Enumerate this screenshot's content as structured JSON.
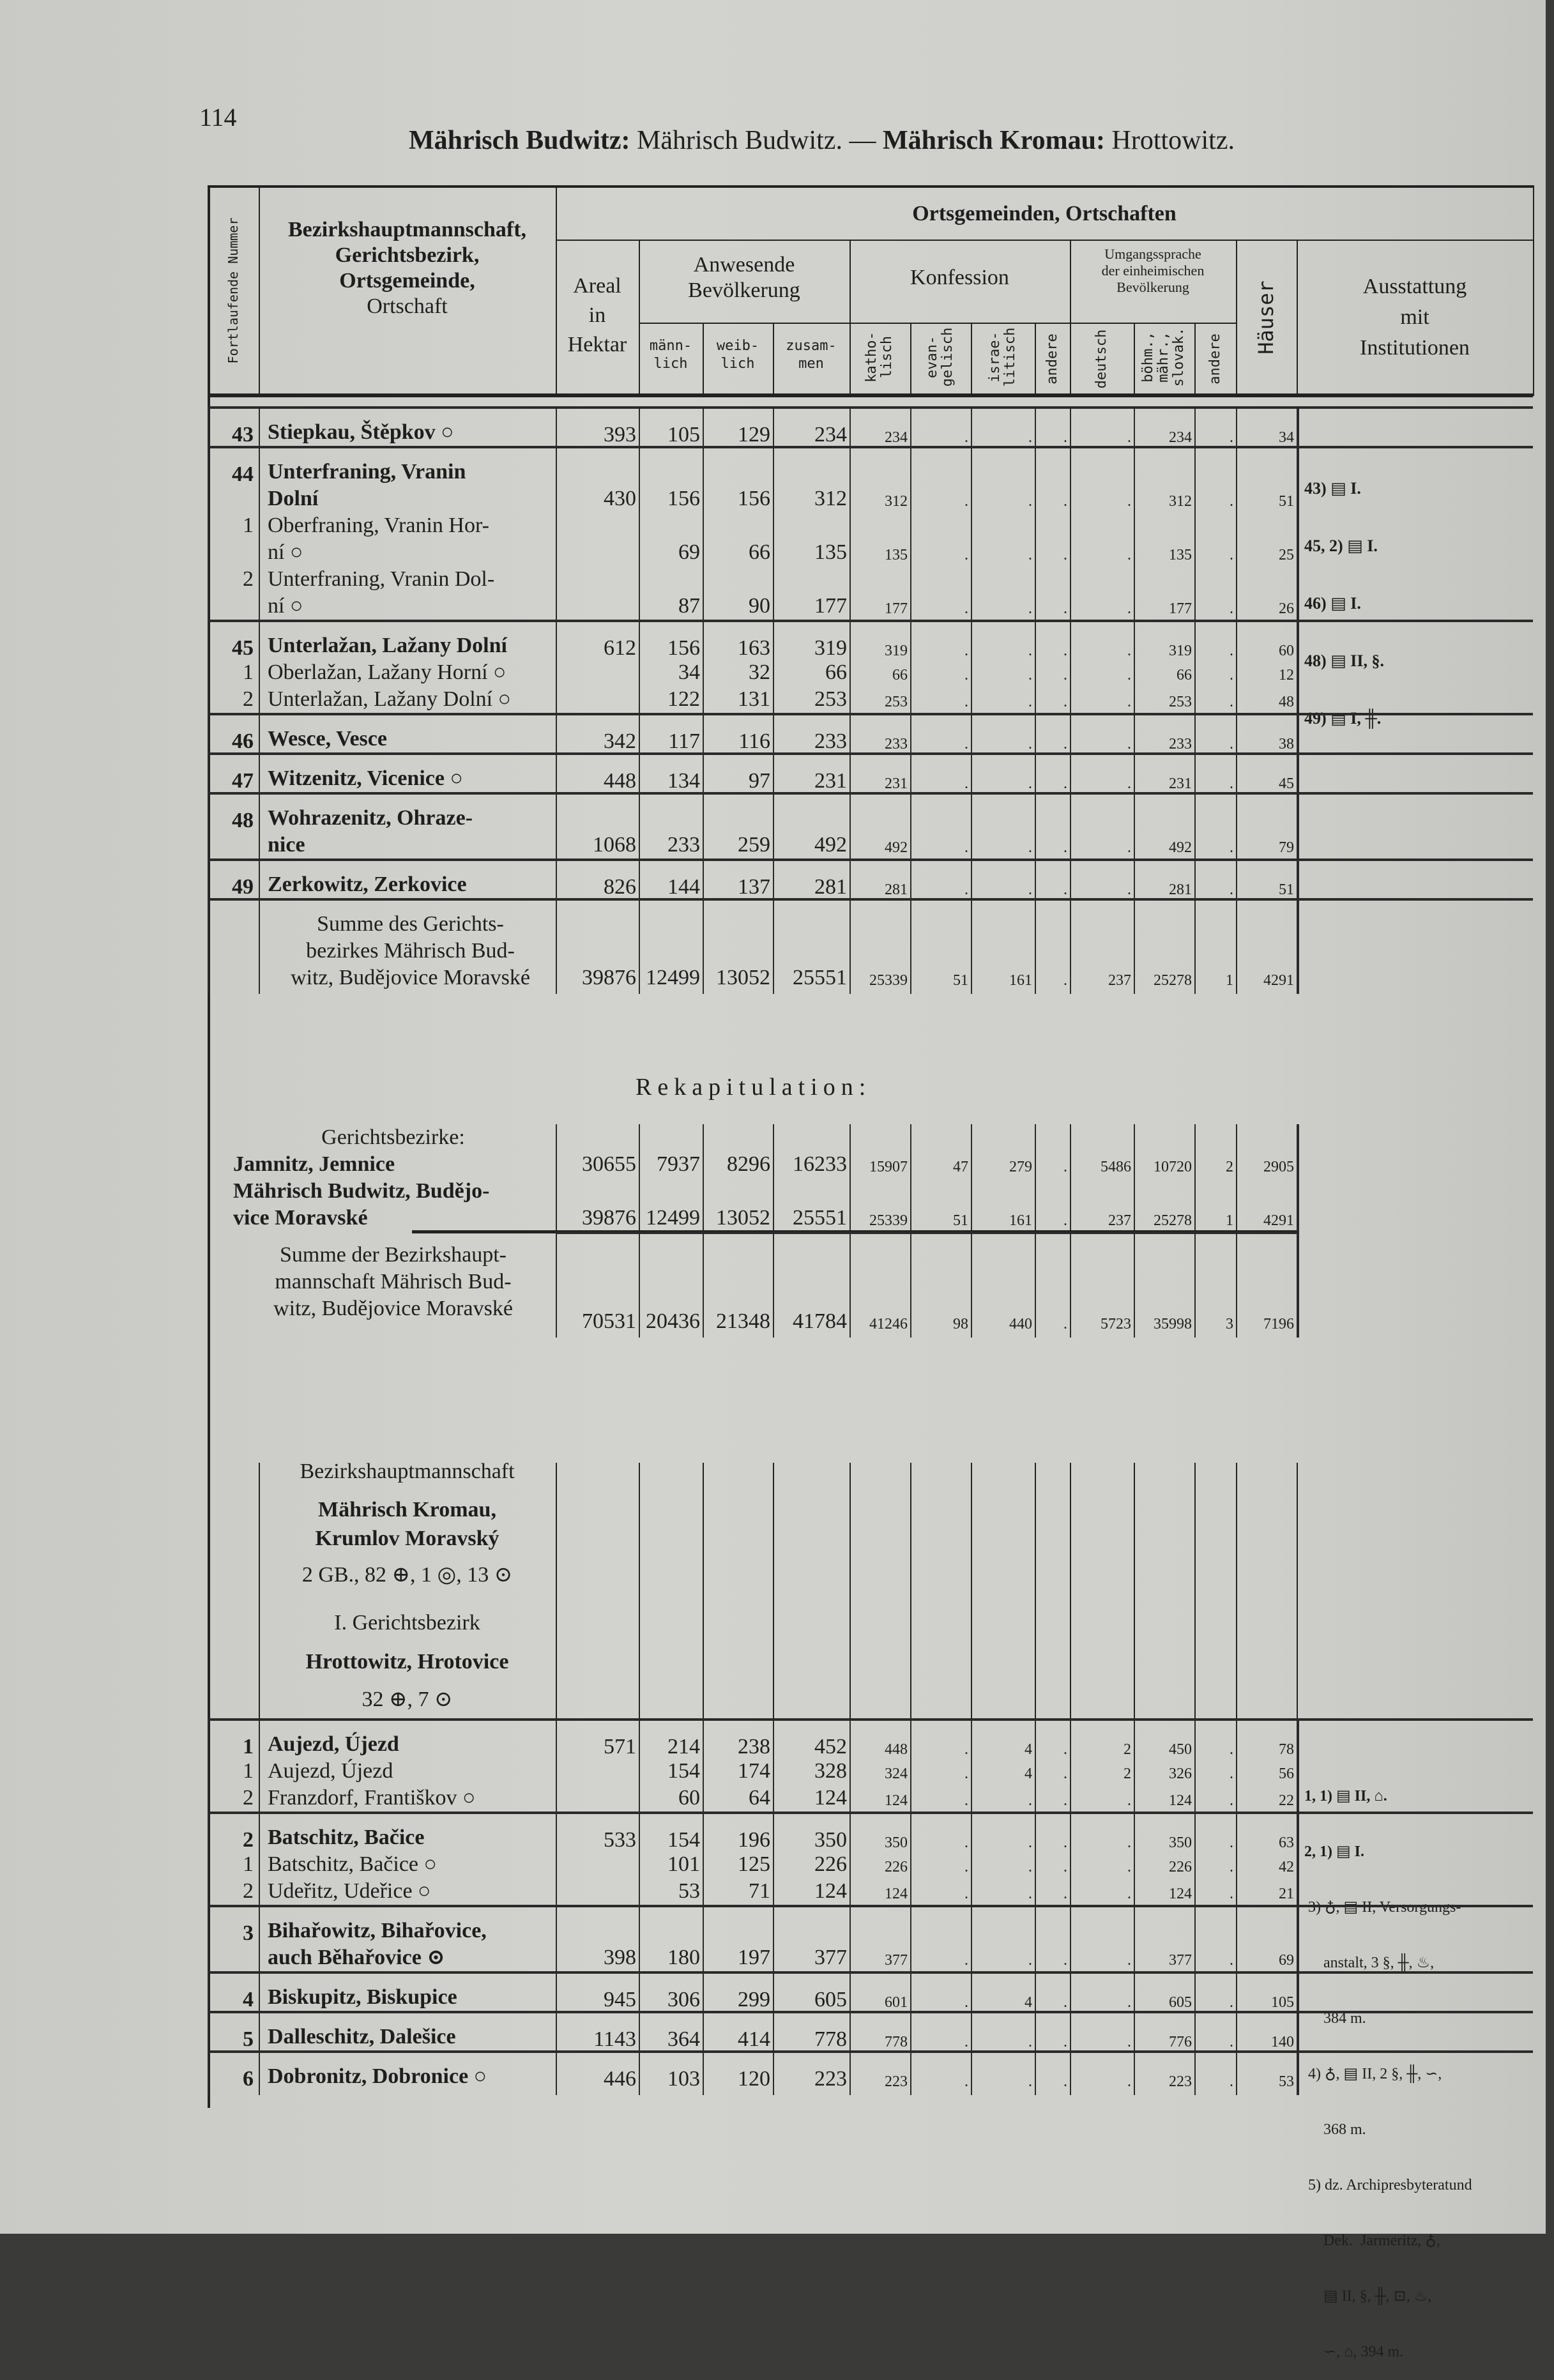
{
  "page_number": "114",
  "page_title": {
    "p1": "Mährisch Budwitz:",
    "p2": " Mährisch Budwitz. — ",
    "p3": "Mährisch Kromau:",
    "p4": " Hrottowitz."
  },
  "header": {
    "nr_label": "Fortlaufende Nummer",
    "name_lines": [
      "Bezirkshauptmannschaft,",
      "Gerichtsbezirk,",
      "Ortsgemeinde,",
      "Ortschaft"
    ],
    "group_title": "Ortsgemeinden, Ortschaften",
    "areal": [
      "Areal",
      "in",
      "Hektar"
    ],
    "bevoelkerung": [
      "Anwesende",
      "Bevölkerung"
    ],
    "bev_cols": [
      "männ-\nlich",
      "weib-\nlich",
      "zusam-\nmen"
    ],
    "konfession": "Konfession",
    "konf_cols": [
      "katho-\nlisch",
      "evan-\ngelisch",
      "israe-\nlitisch",
      "andere"
    ],
    "sprache": [
      "Umgangssprache",
      "der einheimischen",
      "Bevölkerung"
    ],
    "sprache_cols": [
      "deutsch",
      "böhm.,\nmähr.,\nslovak.",
      "andere"
    ],
    "haeuser": "Häuser",
    "ausstattung": [
      "Ausstattung",
      "mit",
      "Institutionen"
    ]
  },
  "sections": [
    {
      "rows": [
        {
          "nr": [
            "43"
          ],
          "name": [
            "Stiepkau, Štěpkov ○"
          ],
          "bold": true,
          "sep": true,
          "v": [
            "393",
            "105",
            "129",
            "234",
            "234",
            ".",
            ".",
            ".",
            ".",
            "234",
            ".",
            "34"
          ]
        },
        {
          "nr": [
            "44"
          ],
          "name": [
            "Unterfraning, Vranin",
            "Dolní"
          ],
          "bold": true,
          "sep": true,
          "v": [
            "430",
            "156",
            "156",
            "312",
            "312",
            ".",
            ".",
            ".",
            ".",
            "312",
            ".",
            "51"
          ]
        },
        {
          "nr": [
            "1"
          ],
          "name": [
            "Oberfraning, Vranin Hor-",
            "ní ○"
          ],
          "v": [
            "",
            "69",
            "66",
            "135",
            "135",
            ".",
            ".",
            ".",
            ".",
            "135",
            ".",
            "25"
          ]
        },
        {
          "nr": [
            "2"
          ],
          "name": [
            "Unterfraning, Vranin Dol-",
            "ní ○"
          ],
          "v": [
            "",
            "87",
            "90",
            "177",
            "177",
            ".",
            ".",
            ".",
            ".",
            "177",
            ".",
            "26"
          ]
        },
        {
          "nr": [
            "45"
          ],
          "name": [
            "Unterlažan, Lažany Dolní"
          ],
          "bold": true,
          "sep": true,
          "v": [
            "612",
            "156",
            "163",
            "319",
            "319",
            ".",
            ".",
            ".",
            ".",
            "319",
            ".",
            "60"
          ]
        },
        {
          "nr": [
            "1"
          ],
          "name": [
            "Oberlažan, Lažany Horní ○"
          ],
          "v": [
            "",
            "34",
            "32",
            "66",
            "66",
            ".",
            ".",
            ".",
            ".",
            "66",
            ".",
            "12"
          ]
        },
        {
          "nr": [
            "2"
          ],
          "name": [
            "Unterlažan, Lažany Dolní ○"
          ],
          "v": [
            "",
            "122",
            "131",
            "253",
            "253",
            ".",
            ".",
            ".",
            ".",
            "253",
            ".",
            "48"
          ]
        },
        {
          "nr": [
            "46"
          ],
          "name": [
            "Wesce, Vesce"
          ],
          "bold": true,
          "sep": true,
          "v": [
            "342",
            "117",
            "116",
            "233",
            "233",
            ".",
            ".",
            ".",
            ".",
            "233",
            ".",
            "38"
          ]
        },
        {
          "nr": [
            "47"
          ],
          "name": [
            "Witzenitz, Vicenice ○"
          ],
          "bold": true,
          "sep": true,
          "v": [
            "448",
            "134",
            "97",
            "231",
            "231",
            ".",
            ".",
            ".",
            ".",
            "231",
            ".",
            "45"
          ]
        },
        {
          "nr": [
            "48"
          ],
          "name": [
            "Wohrazenitz, Ohraze-",
            "nice"
          ],
          "bold": true,
          "sep": true,
          "v": [
            "1068",
            "233",
            "259",
            "492",
            "492",
            ".",
            ".",
            ".",
            ".",
            "492",
            ".",
            "79"
          ]
        },
        {
          "nr": [
            "49"
          ],
          "name": [
            "Zerkowitz, Zerkovice"
          ],
          "bold": true,
          "sep": true,
          "v": [
            "826",
            "144",
            "137",
            "281",
            "281",
            ".",
            ".",
            ".",
            ".",
            "281",
            ".",
            "51"
          ]
        },
        {
          "nr": [
            ""
          ],
          "name": [
            "Summe des Gerichts-",
            "bezirkes Mährisch Bud-",
            "witz, Budějovice Moravské"
          ],
          "center": true,
          "sep": true,
          "v": [
            "39876",
            "12499",
            "13052",
            "25551",
            "25339",
            "51",
            "161",
            ".",
            "237",
            "25278",
            "1",
            "4291"
          ]
        }
      ]
    },
    {
      "title": "Rekapitulation:",
      "rows": [
        {
          "nr": [
            ""
          ],
          "name": [
            "Gerichtsbezirke:"
          ],
          "center": true,
          "v": [
            "",
            "",
            "",
            "",
            "",
            "",
            "",
            "",
            "",
            "",
            "",
            ""
          ]
        },
        {
          "nr": [
            ""
          ],
          "name": [
            "Jamnitz, Jemnice"
          ],
          "bold": true,
          "v": [
            "30655",
            "7937",
            "8296",
            "16233",
            "15907",
            "47",
            "279",
            ".",
            "5486",
            "10720",
            "2",
            "2905"
          ]
        },
        {
          "nr": [
            ""
          ],
          "name": [
            "Mährisch Budwitz, Budějo-",
            "vice Moravské"
          ],
          "bold": true,
          "v": [
            "39876",
            "12499",
            "13052",
            "25551",
            "25339",
            "51",
            "161",
            ".",
            "237",
            "25278",
            "1",
            "4291"
          ]
        },
        {
          "nr": [
            ""
          ],
          "name": [
            "Summe der Bezirkshaupt-",
            "mannschaft Mährisch Bud-",
            "witz, Budějovice Moravské"
          ],
          "center": true,
          "sep": true,
          "v": [
            "70531",
            "20436",
            "21348",
            "41784",
            "41246",
            "98",
            "440",
            ".",
            "5723",
            "35998",
            "3",
            "7196"
          ]
        }
      ]
    },
    {
      "intro": [
        "Bezirkshauptmannschaft",
        "Mährisch Kromau,",
        "Krumlov Moravský",
        "2 GB., 82 ⊕, 1 ◎, 13 ⊙",
        "I. Gerichtsbezirk",
        "Hrottowitz, Hrotovice",
        "32 ⊕, 7 ⊙"
      ],
      "rows": [
        {
          "nr": [
            "1"
          ],
          "name": [
            "Aujezd, Újezd"
          ],
          "bold": true,
          "sep": true,
          "v": [
            "571",
            "214",
            "238",
            "452",
            "448",
            ".",
            "4",
            ".",
            "2",
            "450",
            ".",
            "78"
          ]
        },
        {
          "nr": [
            "1"
          ],
          "name": [
            "Aujezd, Újezd"
          ],
          "v": [
            "",
            "154",
            "174",
            "328",
            "324",
            ".",
            "4",
            ".",
            "2",
            "326",
            ".",
            "56"
          ]
        },
        {
          "nr": [
            "2"
          ],
          "name": [
            "Franzdorf, Františkov ○"
          ],
          "v": [
            "",
            "60",
            "64",
            "124",
            "124",
            ".",
            ".",
            ".",
            ".",
            "124",
            ".",
            "22"
          ]
        },
        {
          "nr": [
            "2"
          ],
          "name": [
            "Batschitz, Bačice"
          ],
          "bold": true,
          "sep": true,
          "v": [
            "533",
            "154",
            "196",
            "350",
            "350",
            ".",
            ".",
            ".",
            ".",
            "350",
            ".",
            "63"
          ]
        },
        {
          "nr": [
            "1"
          ],
          "name": [
            "Batschitz, Bačice ○"
          ],
          "v": [
            "",
            "101",
            "125",
            "226",
            "226",
            ".",
            ".",
            ".",
            ".",
            "226",
            ".",
            "42"
          ]
        },
        {
          "nr": [
            "2"
          ],
          "name": [
            "Udeřitz, Udeřice ○"
          ],
          "v": [
            "",
            "53",
            "71",
            "124",
            "124",
            ".",
            ".",
            ".",
            ".",
            "124",
            ".",
            "21"
          ]
        },
        {
          "nr": [
            "3"
          ],
          "name": [
            "Bihařowitz, Bihařovice,",
            "auch Běhařovice ⊙"
          ],
          "bold": true,
          "sep": true,
          "v": [
            "398",
            "180",
            "197",
            "377",
            "377",
            ".",
            ".",
            ".",
            ".",
            "377",
            ".",
            "69"
          ]
        },
        {
          "nr": [
            "4"
          ],
          "name": [
            "Biskupitz, Biskupice"
          ],
          "bold": true,
          "sep": true,
          "v": [
            "945",
            "306",
            "299",
            "605",
            "601",
            ".",
            "4",
            ".",
            ".",
            "605",
            ".",
            "105"
          ]
        },
        {
          "nr": [
            "5"
          ],
          "name": [
            "Dalleschitz, Dalešice"
          ],
          "bold": true,
          "sep": true,
          "v": [
            "1143",
            "364",
            "414",
            "778",
            "778",
            ".",
            ".",
            ".",
            ".",
            "776",
            ".",
            "140"
          ]
        },
        {
          "nr": [
            "6"
          ],
          "name": [
            "Dobronitz, Dobronice ○"
          ],
          "bold": true,
          "sep": true,
          "v": [
            "446",
            "103",
            "120",
            "223",
            "223",
            ".",
            ".",
            ".",
            ".",
            "223",
            ".",
            "53"
          ]
        }
      ]
    }
  ],
  "notes_top": [
    "43) ▤ I.",
    "45, 2) ▤ I.",
    "46) ▤ I.",
    "48) ▤ II, §.",
    "49) ▤ I, ╫."
  ],
  "notes_bottom": [
    "1, 1) ▤ II, ⌂.",
    "2, 1) ▤ I.",
    " 3) ♁, ▤ II, Versorgungs-",
    "     anstalt, 3 §, ╫, ♨,",
    "     384 m.",
    " 4) ♁, ▤ II, 2 §, ╫, ∽,",
    "     368 m.",
    " 5) dz. Archipresbyteratund",
    "     Dek.  Jarmeritz, ♁,",
    "     ▤ II, §, ╫, ⊡, ♨,",
    "     ∽, ⌂, 394 m."
  ],
  "colors": {
    "paper": "#cfcfcb",
    "ink": "#1e1e1e",
    "scan_edge": "#3a3a38"
  }
}
